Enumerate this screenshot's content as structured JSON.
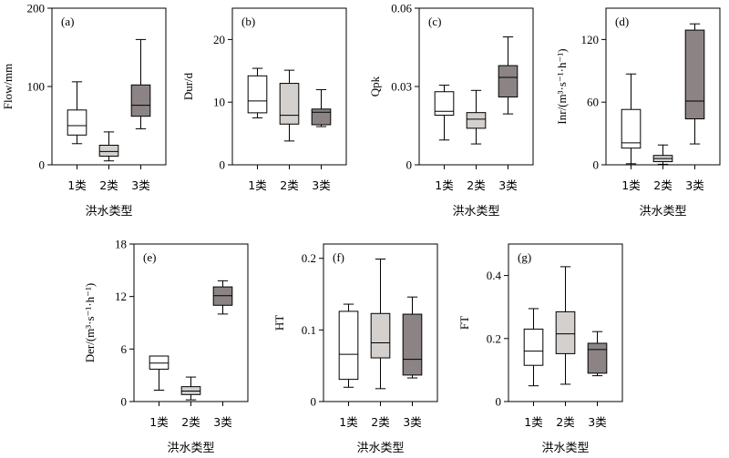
{
  "chart_data": [
    {
      "panel": "(a)",
      "type": "box",
      "ylabel": "Flow/mm",
      "xlabel": "洪水类型",
      "categories": [
        "1类",
        "2类",
        "3类"
      ],
      "ylim": [
        0,
        200
      ],
      "yticks": [
        0,
        100,
        200
      ],
      "series": [
        {
          "category": "1类",
          "whisker_low": 27,
          "q1": 38,
          "median": 50,
          "q3": 70,
          "whisker_high": 106,
          "fill": "#ffffff"
        },
        {
          "category": "2类",
          "whisker_low": 5,
          "q1": 11,
          "median": 17,
          "q3": 25,
          "whisker_high": 42,
          "fill": "#d3d0ce"
        },
        {
          "category": "3类",
          "whisker_low": 46,
          "q1": 62,
          "median": 76,
          "q3": 102,
          "whisker_high": 160,
          "fill": "#8c8484"
        }
      ]
    },
    {
      "panel": "(b)",
      "type": "box",
      "ylabel": "Dur/d",
      "xlabel": "",
      "categories": [
        "1类",
        "2类",
        "3类"
      ],
      "ylim": [
        0,
        25
      ],
      "yticks": [
        0,
        10,
        20
      ],
      "series": [
        {
          "category": "1类",
          "whisker_low": 7.5,
          "q1": 8.3,
          "median": 10.2,
          "q3": 14.2,
          "whisker_high": 15.4,
          "fill": "#ffffff"
        },
        {
          "category": "2类",
          "whisker_low": 3.8,
          "q1": 6.5,
          "median": 7.9,
          "q3": 13,
          "whisker_high": 15.1,
          "fill": "#d3d0ce"
        },
        {
          "category": "3类",
          "whisker_low": 6.1,
          "q1": 6.4,
          "median": 8.4,
          "q3": 8.9,
          "whisker_high": 12,
          "fill": "#8c8484"
        }
      ]
    },
    {
      "panel": "(c)",
      "type": "box",
      "ylabel": "Qpk",
      "xlabel": "洪水类型",
      "categories": [
        "1类",
        "2类",
        "3类"
      ],
      "ylim": [
        0,
        0.06
      ],
      "yticks": [
        0,
        0.03,
        0.06
      ],
      "ytick_labels": [
        "0",
        "0.03",
        "0.06"
      ],
      "series": [
        {
          "category": "1类",
          "whisker_low": 0.0095,
          "q1": 0.019,
          "median": 0.0205,
          "q3": 0.028,
          "whisker_high": 0.0305,
          "fill": "#ffffff"
        },
        {
          "category": "2类",
          "whisker_low": 0.008,
          "q1": 0.014,
          "median": 0.0175,
          "q3": 0.02,
          "whisker_high": 0.0285,
          "fill": "#d3d0ce"
        },
        {
          "category": "3类",
          "whisker_low": 0.0195,
          "q1": 0.026,
          "median": 0.0335,
          "q3": 0.038,
          "whisker_high": 0.049,
          "fill": "#8c8484"
        }
      ]
    },
    {
      "panel": "(d)",
      "type": "box",
      "ylabel": "Inr/(m³·s⁻¹·h⁻¹)",
      "xlabel": "洪水类型",
      "categories": [
        "1类",
        "2类",
        "3类"
      ],
      "ylim": [
        0,
        150
      ],
      "yticks": [
        0,
        60,
        120
      ],
      "series": [
        {
          "category": "1类",
          "whisker_low": 1,
          "q1": 16,
          "median": 21,
          "q3": 53,
          "whisker_high": 87,
          "fill": "#ffffff"
        },
        {
          "category": "2类",
          "whisker_low": 0.5,
          "q1": 3,
          "median": 6,
          "q3": 9,
          "whisker_high": 19,
          "fill": "#d3d0ce"
        },
        {
          "category": "3类",
          "whisker_low": 20,
          "q1": 44,
          "median": 61,
          "q3": 129,
          "whisker_high": 135,
          "fill": "#8c8484"
        }
      ]
    },
    {
      "panel": "(e)",
      "type": "box",
      "ylabel": "Der/(m³·s⁻¹·h⁻¹)",
      "xlabel": "洪水类型",
      "categories": [
        "1类",
        "2类",
        "3类"
      ],
      "ylim": [
        0,
        18
      ],
      "yticks": [
        0,
        6,
        12,
        18
      ],
      "series": [
        {
          "category": "1类",
          "whisker_low": 1.3,
          "q1": 3.7,
          "median": 4.4,
          "q3": 5.2,
          "whisker_high": 5.2,
          "fill": "#ffffff"
        },
        {
          "category": "2类",
          "whisker_low": 0.2,
          "q1": 0.8,
          "median": 1.2,
          "q3": 1.7,
          "whisker_high": 2.8,
          "fill": "#d3d0ce"
        },
        {
          "category": "3类",
          "whisker_low": 10,
          "q1": 11,
          "median": 12.1,
          "q3": 13.1,
          "whisker_high": 13.8,
          "fill": "#8c8484"
        }
      ]
    },
    {
      "panel": "(f)",
      "type": "box",
      "ylabel": "HT",
      "xlabel": "洪水类型",
      "categories": [
        "1类",
        "2类",
        "3类"
      ],
      "ylim": [
        0,
        0.22
      ],
      "yticks": [
        0,
        0.1,
        0.2
      ],
      "ytick_labels": [
        "0",
        "0.1",
        "0.2"
      ],
      "series": [
        {
          "category": "1类",
          "whisker_low": 0.02,
          "q1": 0.031,
          "median": 0.066,
          "q3": 0.126,
          "whisker_high": 0.136,
          "fill": "#ffffff"
        },
        {
          "category": "2类",
          "whisker_low": 0.018,
          "q1": 0.061,
          "median": 0.082,
          "q3": 0.123,
          "whisker_high": 0.199,
          "fill": "#d3d0ce"
        },
        {
          "category": "3类",
          "whisker_low": 0.033,
          "q1": 0.037,
          "median": 0.059,
          "q3": 0.122,
          "whisker_high": 0.146,
          "fill": "#8c8484"
        }
      ]
    },
    {
      "panel": "(g)",
      "type": "box",
      "ylabel": "FT",
      "xlabel": "洪水类型",
      "categories": [
        "1类",
        "2类",
        "3类"
      ],
      "ylim": [
        0,
        0.5
      ],
      "yticks": [
        0,
        0.2,
        0.4
      ],
      "ytick_labels": [
        "0",
        "0.2",
        "0.4"
      ],
      "series": [
        {
          "category": "1类",
          "whisker_low": 0.05,
          "q1": 0.115,
          "median": 0.16,
          "q3": 0.23,
          "whisker_high": 0.295,
          "fill": "#ffffff"
        },
        {
          "category": "2类",
          "whisker_low": 0.055,
          "q1": 0.152,
          "median": 0.215,
          "q3": 0.285,
          "whisker_high": 0.428,
          "fill": "#d3d0ce"
        },
        {
          "category": "3类",
          "whisker_low": 0.082,
          "q1": 0.09,
          "median": 0.165,
          "q3": 0.185,
          "whisker_high": 0.222,
          "fill": "#8c8484"
        }
      ]
    }
  ]
}
